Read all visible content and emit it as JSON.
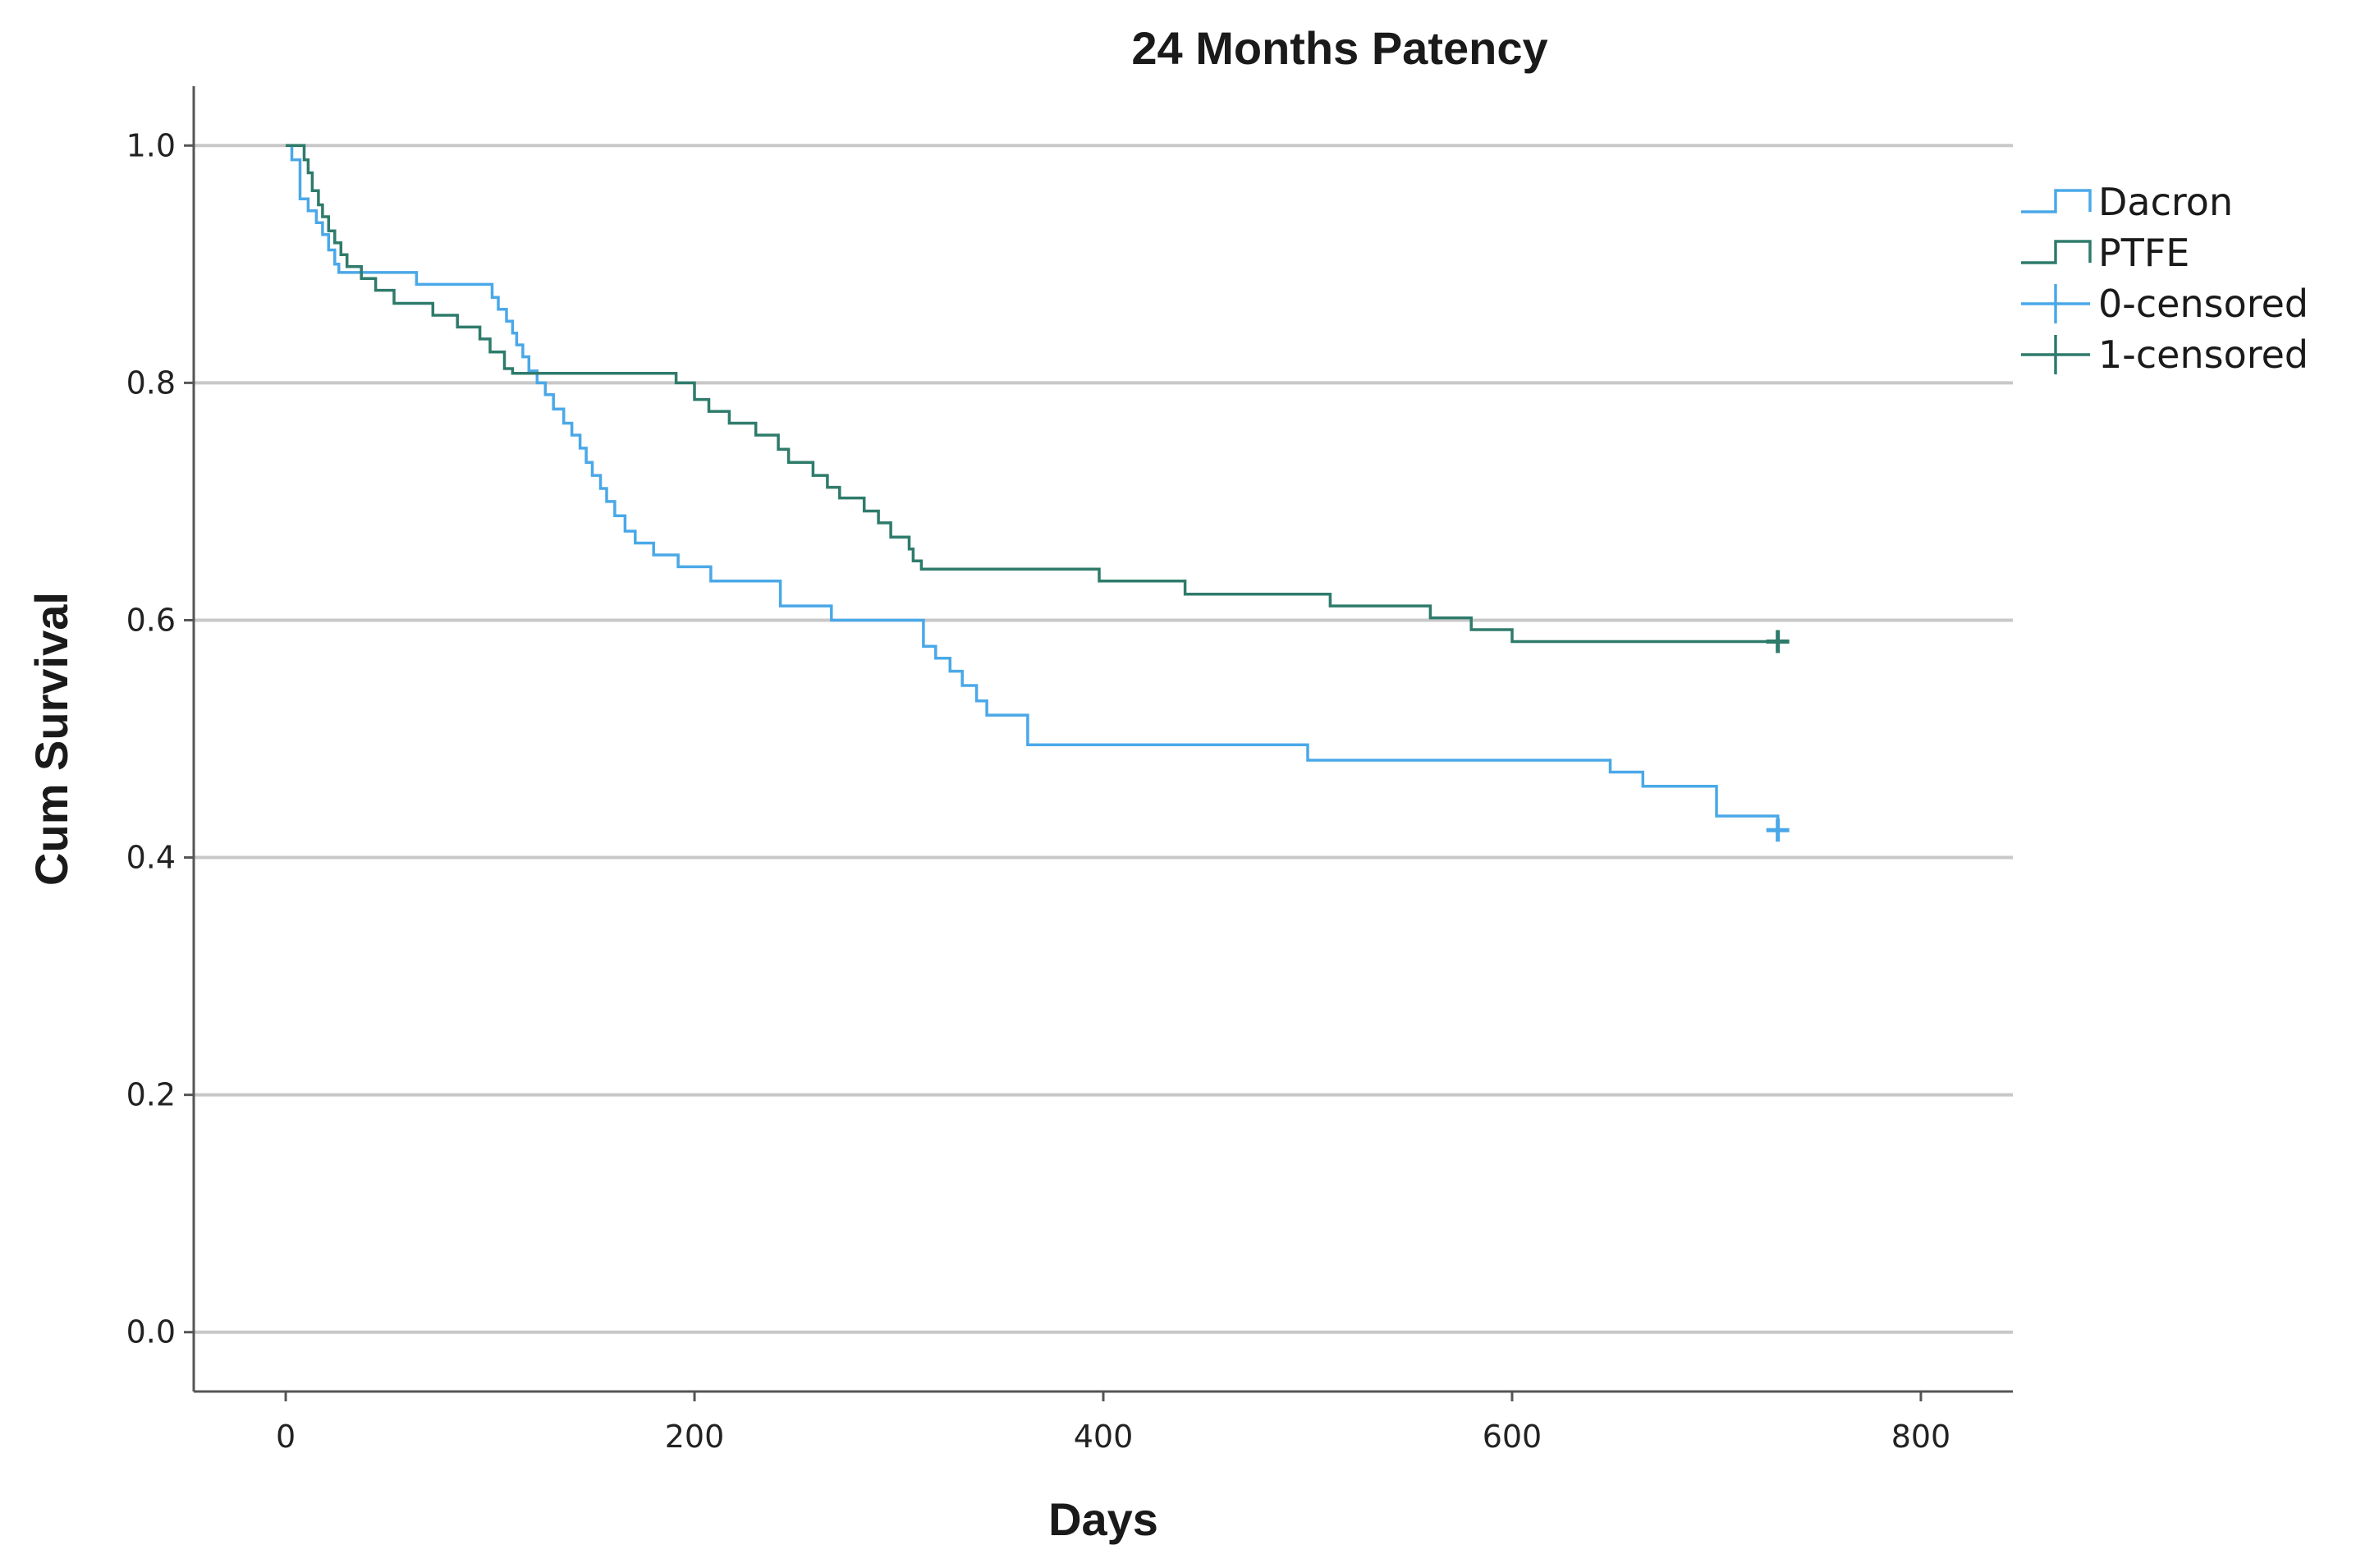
{
  "chart_data": {
    "type": "line",
    "step": true,
    "title": "24 Months Patency",
    "xlabel": "Days",
    "ylabel": "Cum Survival",
    "xlim": [
      -45,
      845
    ],
    "ylim": [
      -0.05,
      1.05
    ],
    "xticks": [
      0,
      200,
      400,
      600,
      800
    ],
    "xtick_labels": [
      "0",
      "200",
      "400",
      "600",
      "800"
    ],
    "yticks": [
      0.0,
      0.2,
      0.4,
      0.6,
      0.8,
      1.0
    ],
    "ytick_labels": [
      "0.0",
      "0.2",
      "0.4",
      "0.6",
      "0.8",
      "1.0"
    ],
    "grid": "horizontal",
    "legend_position": "top-right",
    "legend": [
      {
        "label": "Dacron",
        "marker": "step",
        "color": "#4aa8e8"
      },
      {
        "label": "PTFE",
        "marker": "step",
        "color": "#2e7b6b"
      },
      {
        "label": "0-censored",
        "marker": "plus",
        "color": "#4aa8e8"
      },
      {
        "label": "1-censored",
        "marker": "plus",
        "color": "#2e7b6b"
      }
    ],
    "series": [
      {
        "name": "Dacron",
        "color": "#4aa8e8",
        "x": [
          0,
          3,
          7,
          11,
          15,
          18,
          21,
          24,
          26,
          29,
          33,
          64,
          96,
          101,
          104,
          108,
          111,
          113,
          116,
          119,
          123,
          127,
          131,
          136,
          140,
          144,
          147,
          150,
          154,
          157,
          161,
          166,
          171,
          180,
          192,
          208,
          242,
          267,
          312,
          318,
          325,
          331,
          338,
          343,
          361,
          363,
          500,
          648,
          664,
          700,
          730
        ],
        "y": [
          1.0,
          0.988,
          0.955,
          0.945,
          0.935,
          0.925,
          0.912,
          0.9,
          0.893,
          0.893,
          0.893,
          0.883,
          0.883,
          0.872,
          0.862,
          0.852,
          0.842,
          0.832,
          0.822,
          0.81,
          0.8,
          0.79,
          0.778,
          0.766,
          0.756,
          0.745,
          0.733,
          0.722,
          0.711,
          0.7,
          0.688,
          0.675,
          0.665,
          0.655,
          0.645,
          0.633,
          0.612,
          0.6,
          0.578,
          0.568,
          0.557,
          0.545,
          0.532,
          0.52,
          0.52,
          0.495,
          0.482,
          0.472,
          0.46,
          0.435,
          0.423
        ],
        "censored": [
          [
            730,
            0.423
          ]
        ]
      },
      {
        "name": "PTFE",
        "color": "#2e7b6b",
        "x": [
          0,
          5,
          9,
          11,
          13,
          16,
          18,
          21,
          24,
          27,
          30,
          37,
          44,
          53,
          72,
          84,
          95,
          100,
          107,
          111,
          191,
          200,
          207,
          217,
          230,
          241,
          246,
          251,
          258,
          265,
          271,
          283,
          290,
          296,
          305,
          307,
          311,
          318,
          398,
          440,
          511,
          560,
          577,
          580,
          600,
          730
        ],
        "y": [
          1.0,
          1.0,
          0.988,
          0.977,
          0.962,
          0.95,
          0.94,
          0.928,
          0.918,
          0.908,
          0.898,
          0.888,
          0.878,
          0.867,
          0.857,
          0.847,
          0.837,
          0.826,
          0.812,
          0.808,
          0.8,
          0.786,
          0.776,
          0.766,
          0.756,
          0.744,
          0.733,
          0.733,
          0.722,
          0.712,
          0.703,
          0.692,
          0.682,
          0.67,
          0.66,
          0.65,
          0.643,
          0.643,
          0.633,
          0.622,
          0.612,
          0.602,
          0.602,
          0.592,
          0.582,
          0.582
        ],
        "censored": [
          [
            730,
            0.582
          ]
        ]
      }
    ]
  }
}
